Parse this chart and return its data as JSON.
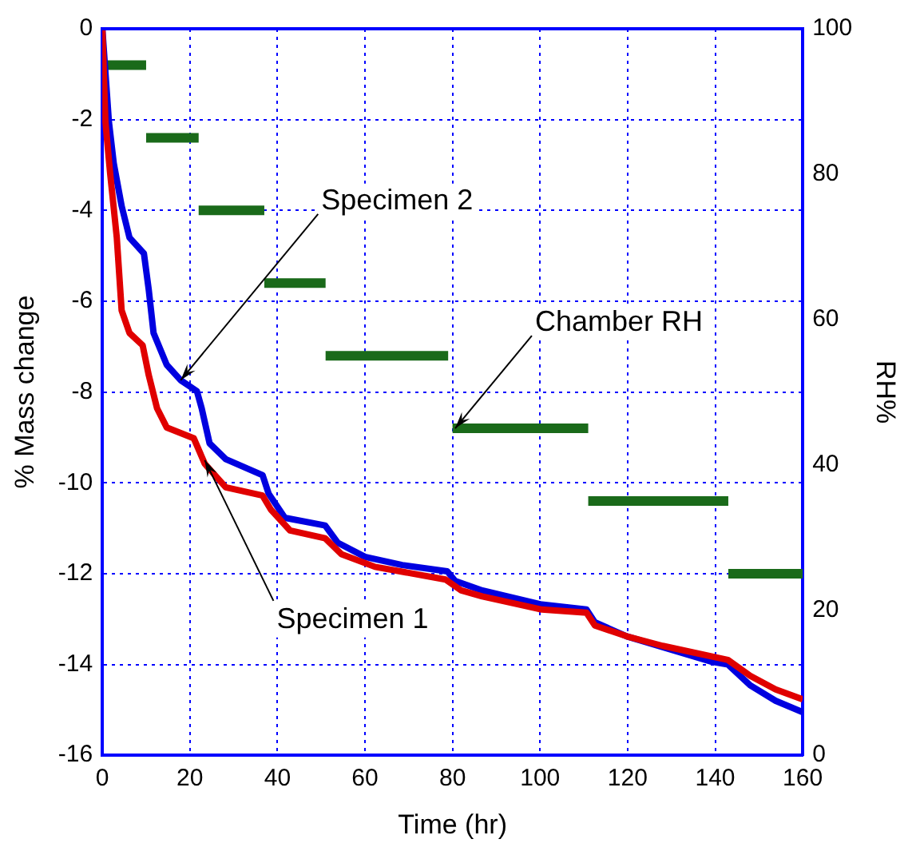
{
  "chart_data": {
    "type": "line",
    "xlabel": "Time (hr)",
    "ylabel": "% Mass change",
    "y2label": "RH%",
    "xlim": [
      0,
      160
    ],
    "xticks": [
      0,
      20,
      40,
      60,
      80,
      100,
      120,
      140,
      160
    ],
    "ylim": [
      -16,
      0
    ],
    "yticks": [
      -16,
      -14,
      -12,
      -10,
      -8,
      -6,
      -4,
      -2,
      0
    ],
    "y2lim": [
      0,
      100
    ],
    "y2ticks": [
      0,
      20,
      40,
      60,
      80,
      100
    ],
    "grid": true,
    "legend": false,
    "marker": "none",
    "line_style": "solid",
    "series": [
      {
        "color": "#e00000",
        "x": [
          0,
          0.7,
          1.8,
          3.3,
          4.4,
          6.2,
          9.2,
          10.6,
          12.5,
          14.7,
          20.9,
          23.4,
          28.2,
          36.6,
          38.5,
          42.9,
          50.9,
          54.6,
          62.3,
          78.4,
          82,
          86.8,
          100.4,
          110.6,
          112.5,
          119.8,
          128,
          142.9,
          148,
          153.8,
          160
        ],
        "values": [
          0,
          -2.05,
          -3.2,
          -4.6,
          -6.2,
          -6.7,
          -6.97,
          -7.63,
          -8.36,
          -8.78,
          -9.02,
          -9.58,
          -10.1,
          -10.28,
          -10.59,
          -11.05,
          -11.22,
          -11.57,
          -11.85,
          -12.13,
          -12.37,
          -12.5,
          -12.79,
          -12.86,
          -13.14,
          -13.38,
          -13.59,
          -13.9,
          -14.25,
          -14.55,
          -14.77
        ]
      },
      {
        "color": "#0000e0",
        "x": [
          0,
          1.5,
          2.6,
          4.4,
          6.2,
          9.5,
          10.6,
          11.7,
          14.7,
          17.9,
          21.6,
          22.7,
          24.5,
          28.2,
          36.6,
          38,
          41.7,
          50.9,
          53.8,
          60,
          68.5,
          78.8,
          80.6,
          86.8,
          100.4,
          110.6,
          112.5,
          119.8,
          139.2,
          142.9,
          148,
          153.8,
          160
        ],
        "values": [
          0,
          -2.05,
          -2.96,
          -3.9,
          -4.6,
          -4.95,
          -5.75,
          -6.7,
          -7.4,
          -7.74,
          -7.98,
          -8.36,
          -9.13,
          -9.48,
          -9.83,
          -10.24,
          -10.77,
          -10.94,
          -11.32,
          -11.63,
          -11.81,
          -11.95,
          -12.16,
          -12.37,
          -12.68,
          -12.79,
          -13.07,
          -13.38,
          -13.94,
          -14,
          -14.46,
          -14.8,
          -15.05
        ]
      },
      {
        "color": "#1a6a1a",
        "axis": "y2",
        "x": [
          0,
          10
        ],
        "values": [
          95,
          95
        ]
      },
      {
        "color": "#1a6a1a",
        "axis": "y2",
        "x": [
          10,
          22
        ],
        "values": [
          85,
          85
        ]
      },
      {
        "color": "#1a6a1a",
        "axis": "y2",
        "x": [
          22,
          37
        ],
        "values": [
          75,
          75
        ]
      },
      {
        "color": "#1a6a1a",
        "axis": "y2",
        "x": [
          37,
          51
        ],
        "values": [
          65,
          65
        ]
      },
      {
        "color": "#1a6a1a",
        "axis": "y2",
        "x": [
          51,
          79
        ],
        "values": [
          55,
          55
        ]
      },
      {
        "color": "#1a6a1a",
        "axis": "y2",
        "x": [
          80,
          111
        ],
        "values": [
          45,
          45
        ]
      },
      {
        "color": "#1a6a1a",
        "axis": "y2",
        "x": [
          111,
          143
        ],
        "values": [
          35,
          35
        ]
      },
      {
        "color": "#1a6a1a",
        "axis": "y2",
        "x": [
          143,
          160
        ],
        "values": [
          25,
          25
        ]
      }
    ],
    "annotations": [
      {
        "text": "Specimen 2",
        "x": 17.9,
        "y": -7.74
      },
      {
        "text": "Specimen 1",
        "x": 23.4,
        "y": -9.5
      },
      {
        "text": "Chamber RH",
        "x": 80.6,
        "y": -8.8
      }
    ]
  }
}
